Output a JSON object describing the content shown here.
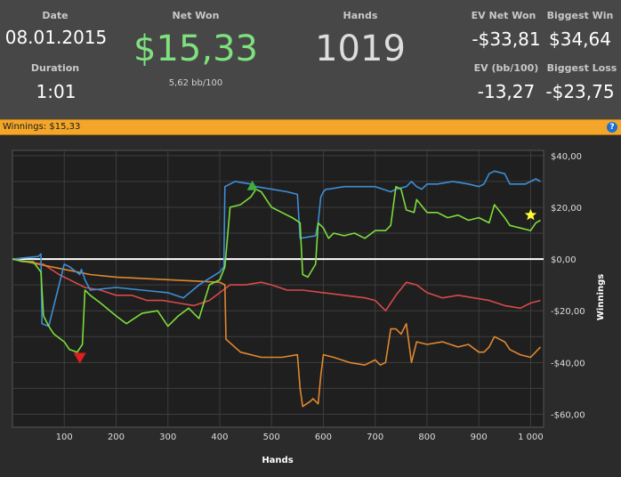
{
  "summary": {
    "date_label": "Date",
    "date_value": "08.01.2015",
    "duration_label": "Duration",
    "duration_value": "1:01",
    "net_won_label": "Net Won",
    "net_won_value": "$15,33",
    "bb_per_100": "5,62 bb/100",
    "hands_label": "Hands",
    "hands_value": "1019",
    "ev_net_won_label": "EV Net Won",
    "ev_net_won_value": "-$33,81",
    "ev_bb_label": "EV (bb/100)",
    "ev_bb_value": "-13,27",
    "biggest_win_label": "Biggest Win",
    "biggest_win_value": "$34,64",
    "biggest_loss_label": "Biggest Loss",
    "biggest_loss_value": "-$23,75"
  },
  "graph_bar": {
    "title": "Winnings: $15,33",
    "help_label": "?"
  },
  "colors": {
    "header_bg": "#474747",
    "bar_bg": "#f3a62a",
    "net_won_green": "#7ee07e",
    "series_blue": "#3c8fd6",
    "series_green": "#7cdc3c",
    "series_red": "#d84a4a",
    "series_orange": "#e0882e"
  },
  "chart_data": {
    "type": "line",
    "xlabel": "Hands",
    "ylabel": "Winnings",
    "xlim": [
      0,
      1025
    ],
    "ylim": [
      -65,
      42
    ],
    "x_ticks": [
      100,
      200,
      300,
      400,
      500,
      600,
      700,
      800,
      900,
      1000
    ],
    "x_tick_labels": [
      "100",
      "200",
      "300",
      "400",
      "500",
      "600",
      "700",
      "800",
      "900",
      "1 000"
    ],
    "y_ticks": [
      40,
      20,
      0,
      -20,
      -40,
      -60
    ],
    "y_tick_labels": [
      "$40,00",
      "$20,00",
      "$0,00",
      "-$20,00",
      "-$40,00",
      "-$60,00"
    ],
    "grid": true,
    "series": [
      {
        "color": "#3c8fd6",
        "x": [
          0,
          50,
          55,
          57,
          70,
          100,
          110,
          130,
          133,
          140,
          150,
          200,
          250,
          300,
          330,
          360,
          400,
          408,
          410,
          420,
          430,
          460,
          470,
          500,
          530,
          550,
          555,
          585,
          590,
          595,
          600,
          605,
          610,
          640,
          700,
          730,
          740,
          760,
          770,
          780,
          790,
          800,
          820,
          850,
          880,
          900,
          910,
          920,
          930,
          950,
          960,
          990,
          1000,
          1010,
          1019
        ],
        "y": [
          0,
          1,
          2,
          -25,
          -26,
          -2,
          -3,
          -6,
          -4,
          -8,
          -12,
          -11,
          -12,
          -13,
          -15,
          -10,
          -5,
          -3,
          28,
          29,
          30,
          29,
          28,
          27,
          26,
          25,
          8,
          9,
          14,
          24,
          26,
          27,
          27,
          28,
          28,
          26,
          27,
          28,
          30,
          28,
          27,
          29,
          29,
          30,
          29,
          28,
          29,
          33,
          34,
          33,
          29,
          29,
          30,
          31,
          30
        ]
      },
      {
        "color": "#7cdc3c",
        "x": [
          0,
          20,
          40,
          55,
          60,
          70,
          80,
          100,
          110,
          125,
          135,
          140,
          150,
          170,
          200,
          220,
          250,
          280,
          300,
          320,
          340,
          360,
          380,
          400,
          410,
          420,
          440,
          460,
          470,
          480,
          500,
          520,
          540,
          555,
          560,
          570,
          585,
          590,
          600,
          610,
          620,
          640,
          660,
          680,
          700,
          720,
          730,
          740,
          750,
          760,
          775,
          780,
          800,
          820,
          840,
          860,
          880,
          900,
          920,
          930,
          950,
          960,
          980,
          1000,
          1010,
          1019
        ],
        "y": [
          0,
          -1,
          -1,
          -5,
          -22,
          -26,
          -29,
          -32,
          -35,
          -36,
          -33,
          -12,
          -14,
          -17,
          -22,
          -25,
          -21,
          -20,
          -26,
          -22,
          -19,
          -23,
          -10,
          -8,
          -3,
          20,
          21,
          24,
          27,
          26,
          20,
          18,
          16,
          14,
          -6,
          -7,
          -2,
          14,
          12,
          8,
          10,
          9,
          10,
          8,
          11,
          11,
          13,
          28,
          27,
          19,
          18,
          23,
          18,
          18,
          16,
          17,
          15,
          16,
          14,
          21,
          16,
          13,
          12,
          11,
          14,
          15
        ]
      },
      {
        "color": "#d84a4a",
        "x": [
          0,
          30,
          60,
          90,
          110,
          140,
          170,
          200,
          230,
          260,
          290,
          320,
          350,
          380,
          400,
          420,
          450,
          480,
          500,
          530,
          560,
          600,
          640,
          680,
          700,
          720,
          740,
          760,
          780,
          800,
          830,
          860,
          890,
          920,
          950,
          980,
          1000,
          1019
        ],
        "y": [
          0,
          -1,
          -2,
          -6,
          -8,
          -11,
          -12,
          -14,
          -14,
          -16,
          -16,
          -17,
          -18,
          -16,
          -13,
          -10,
          -10,
          -9,
          -10,
          -12,
          -12,
          -13,
          -14,
          -15,
          -16,
          -20,
          -14,
          -9,
          -10,
          -13,
          -15,
          -14,
          -15,
          -16,
          -18,
          -19,
          -17,
          -16
        ]
      },
      {
        "color": "#e0882e",
        "x": [
          0,
          50,
          100,
          150,
          200,
          300,
          400,
          410,
          412,
          440,
          480,
          520,
          550,
          555,
          560,
          575,
          580,
          590,
          595,
          600,
          620,
          650,
          680,
          700,
          710,
          720,
          730,
          740,
          750,
          760,
          770,
          780,
          800,
          830,
          860,
          880,
          900,
          910,
          920,
          930,
          950,
          960,
          980,
          1000,
          1019
        ],
        "y": [
          0,
          -2,
          -4,
          -6,
          -7,
          -8,
          -9,
          -10,
          -31,
          -36,
          -38,
          -38,
          -37,
          -50,
          -57,
          -55,
          -54,
          -56,
          -45,
          -37,
          -38,
          -40,
          -41,
          -39,
          -41,
          -40,
          -27,
          -27,
          -29,
          -25,
          -40,
          -32,
          -33,
          -32,
          -34,
          -33,
          -36,
          -36,
          -34,
          -30,
          -32,
          -35,
          -37,
          -38,
          -34
        ]
      }
    ],
    "markers": [
      {
        "type": "triangle-up",
        "color": "#3fae3f",
        "x": 463,
        "y": 28
      },
      {
        "type": "triangle-down",
        "color": "#e01e1e",
        "x": 130,
        "y": -38
      },
      {
        "type": "star",
        "color": "#ffff33",
        "x": 1000,
        "y": 17
      }
    ]
  }
}
